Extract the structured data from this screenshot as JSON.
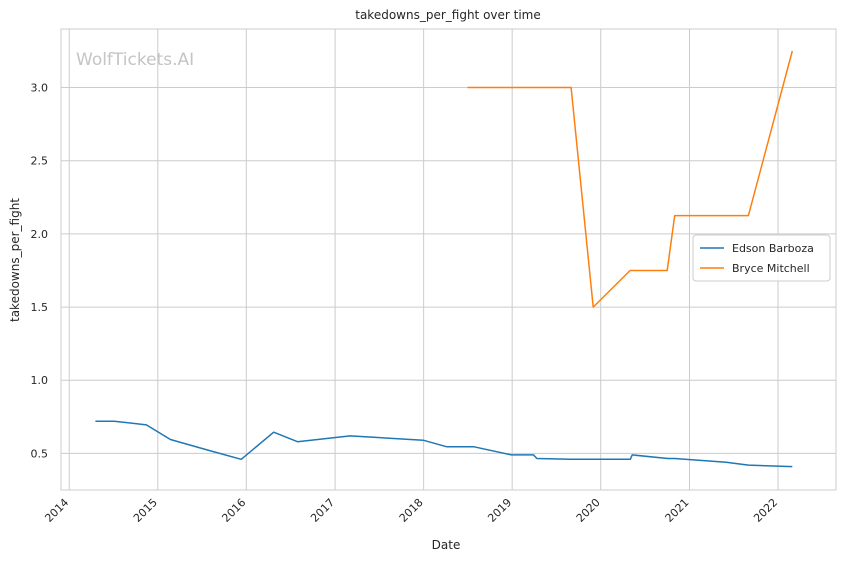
{
  "watermark": "WolfTickets.AI",
  "chart_data": {
    "type": "line",
    "title": "takedowns_per_fight over time",
    "xlabel": "Date",
    "ylabel": "takedowns_per_fight",
    "xlim": [
      "2013-11-28",
      "2022-08-28"
    ],
    "ylim": [
      0.25,
      3.4
    ],
    "x_ticks": [
      "2014",
      "2015",
      "2016",
      "2017",
      "2018",
      "2019",
      "2020",
      "2021",
      "2022"
    ],
    "y_ticks": [
      0.5,
      1.0,
      1.5,
      2.0,
      2.5,
      3.0
    ],
    "grid": true,
    "legend_position": "right",
    "series": [
      {
        "name": "Edson Barboza",
        "color": "#1f77b4",
        "points": [
          [
            "2014-04-19",
            0.72
          ],
          [
            "2014-07-05",
            0.72
          ],
          [
            "2014-11-15",
            0.695
          ],
          [
            "2015-02-22",
            0.595
          ],
          [
            "2015-08-01",
            0.52
          ],
          [
            "2015-12-11",
            0.46
          ],
          [
            "2016-04-23",
            0.645
          ],
          [
            "2016-07-30",
            0.58
          ],
          [
            "2017-03-04",
            0.62
          ],
          [
            "2017-12-30",
            0.59
          ],
          [
            "2018-04-07",
            0.545
          ],
          [
            "2018-07-28",
            0.545
          ],
          [
            "2018-12-29",
            0.49
          ],
          [
            "2019-03-30",
            0.49
          ],
          [
            "2019-04-13",
            0.465
          ],
          [
            "2019-08-31",
            0.46
          ],
          [
            "2020-05-02",
            0.46
          ],
          [
            "2020-05-10",
            0.49
          ],
          [
            "2020-10-03",
            0.465
          ],
          [
            "2020-11-01",
            0.465
          ],
          [
            "2021-06-01",
            0.44
          ],
          [
            "2021-09-01",
            0.42
          ],
          [
            "2022-03-01",
            0.41
          ]
        ]
      },
      {
        "name": "Bryce Mitchell",
        "color": "#ff7f0e",
        "points": [
          [
            "2018-07-01",
            3.0
          ],
          [
            "2019-09-01",
            3.0
          ],
          [
            "2019-12-01",
            1.5
          ],
          [
            "2020-05-01",
            1.75
          ],
          [
            "2020-10-01",
            1.75
          ],
          [
            "2020-11-01",
            2.125
          ],
          [
            "2021-09-01",
            2.125
          ],
          [
            "2022-03-01",
            3.25
          ]
        ]
      }
    ]
  }
}
